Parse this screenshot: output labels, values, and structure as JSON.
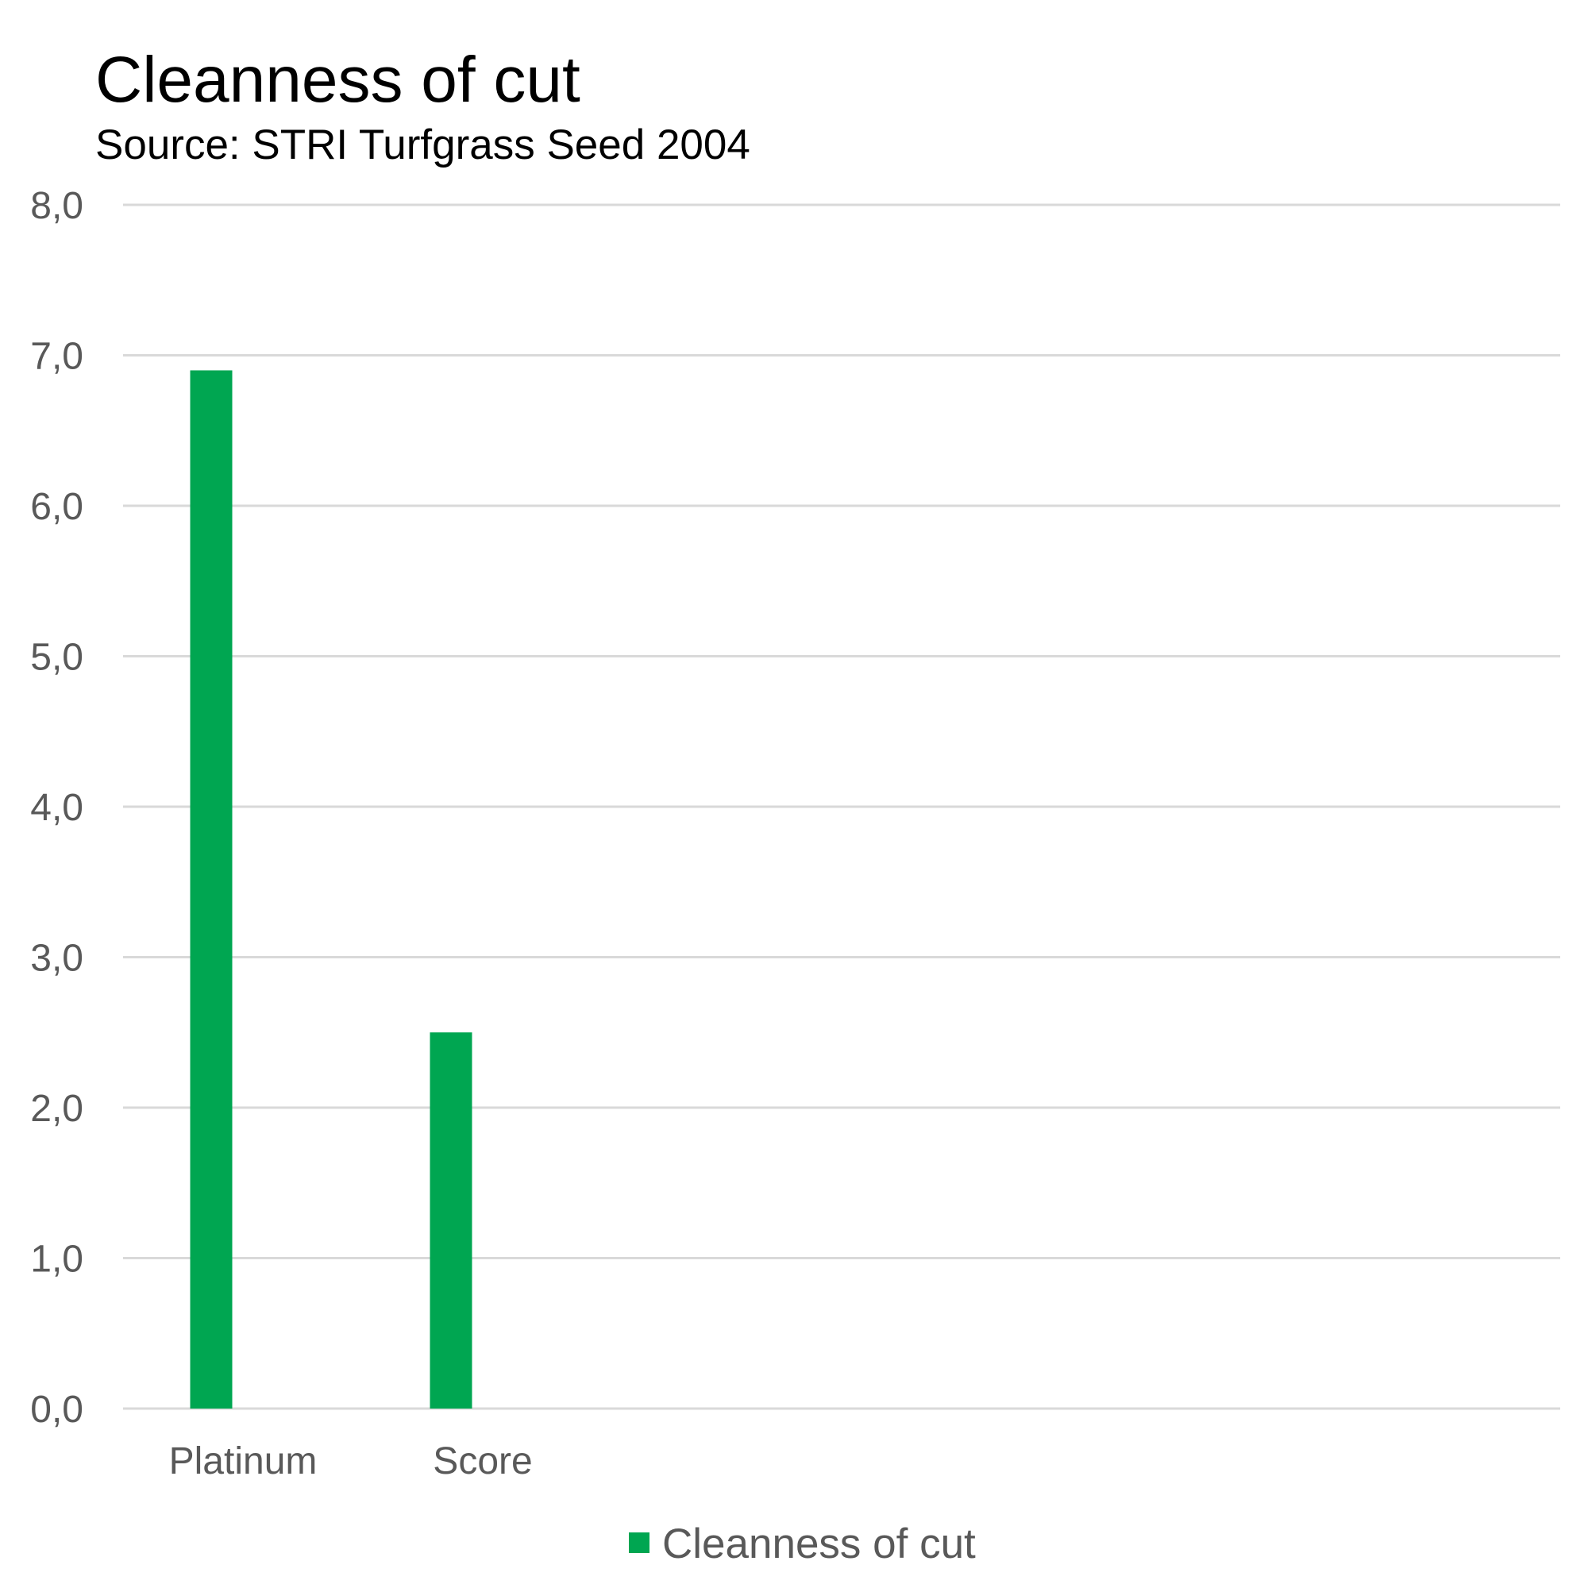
{
  "chart_data": {
    "type": "bar",
    "title": "Cleanness of cut",
    "subtitle": "Source: STRI Turfgrass Seed 2004",
    "categories": [
      "Platinum",
      "Score"
    ],
    "series": [
      {
        "name": "Cleanness of cut",
        "values": [
          6.9,
          2.5
        ],
        "color": "#00a651"
      }
    ],
    "ylim": [
      0,
      8
    ],
    "yticks": [
      "0,0",
      "1,0",
      "2,0",
      "3,0",
      "4,0",
      "5,0",
      "6,0",
      "7,0",
      "8,0"
    ],
    "grid": true,
    "legend": "bottom-center",
    "gridline_color": "#d9d9d9",
    "tick_label_color": "#595959"
  }
}
